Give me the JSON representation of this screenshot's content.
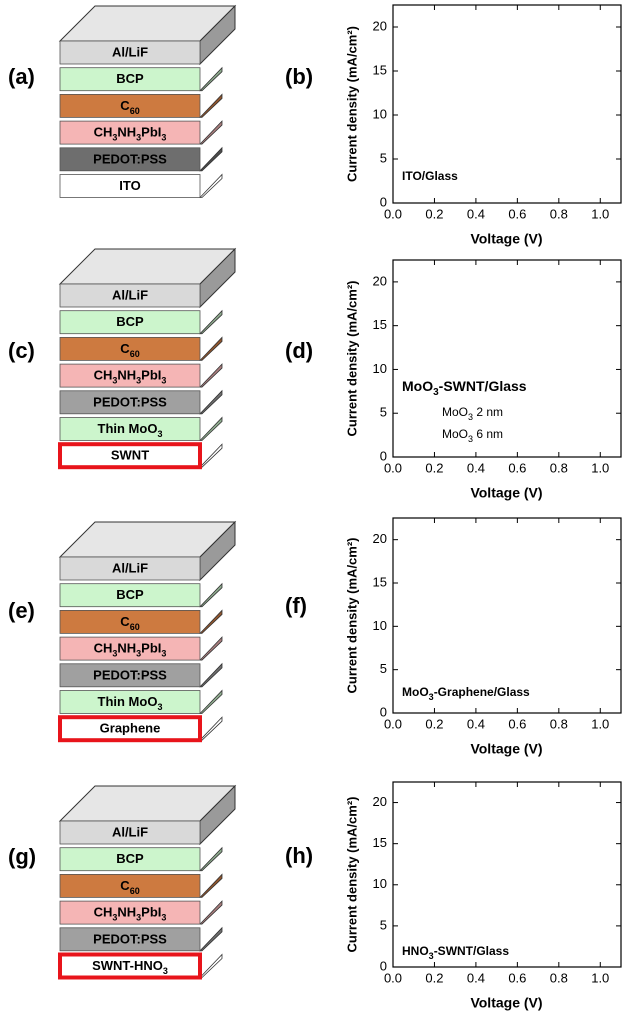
{
  "panels": [
    {
      "label": "(a)",
      "layers": [
        {
          "text": [
            "Al/LiF"
          ],
          "color": "#d9d9d9"
        },
        {
          "text": [
            "BCP"
          ],
          "color": "#ccf5cc"
        },
        {
          "text": [
            "C",
            "60"
          ],
          "color": "#cd7a40"
        },
        {
          "text": [
            "CH",
            "3",
            "NH",
            "3",
            "PbI",
            "3"
          ],
          "color": "#f5b5b5"
        },
        {
          "text": [
            "PEDOT:PSS"
          ],
          "color": "#6e6e6e"
        },
        {
          "text": [
            "ITO"
          ],
          "color": "#ffffff"
        }
      ]
    },
    {
      "label": "(c)",
      "layers": [
        {
          "text": [
            "Al/LiF"
          ],
          "color": "#d9d9d9"
        },
        {
          "text": [
            "BCP"
          ],
          "color": "#ccf5cc"
        },
        {
          "text": [
            "C",
            "60"
          ],
          "color": "#cd7a40"
        },
        {
          "text": [
            "CH",
            "3",
            "NH",
            "3",
            "PbI",
            "3"
          ],
          "color": "#f5b5b5"
        },
        {
          "text": [
            "PEDOT:PSS"
          ],
          "color": "#a0a0a0"
        },
        {
          "text": [
            "Thin MoO",
            "3"
          ],
          "color": "#ccf5cc"
        },
        {
          "text": [
            "SWNT"
          ],
          "color": "#ffffff",
          "highlight": true
        }
      ]
    },
    {
      "label": "(e)",
      "layers": [
        {
          "text": [
            "Al/LiF"
          ],
          "color": "#d9d9d9"
        },
        {
          "text": [
            "BCP"
          ],
          "color": "#ccf5cc"
        },
        {
          "text": [
            "C",
            "60"
          ],
          "color": "#cd7a40"
        },
        {
          "text": [
            "CH",
            "3",
            "NH",
            "3",
            "PbI",
            "3"
          ],
          "color": "#f5b5b5"
        },
        {
          "text": [
            "PEDOT:PSS"
          ],
          "color": "#a0a0a0"
        },
        {
          "text": [
            "Thin MoO",
            "3"
          ],
          "color": "#ccf5cc"
        },
        {
          "text": [
            "Graphene"
          ],
          "color": "#ffffff",
          "highlight": true
        }
      ]
    },
    {
      "label": "(g)",
      "layers": [
        {
          "text": [
            "Al/LiF"
          ],
          "color": "#d9d9d9"
        },
        {
          "text": [
            "BCP"
          ],
          "color": "#ccf5cc"
        },
        {
          "text": [
            "C",
            "60"
          ],
          "color": "#cd7a40"
        },
        {
          "text": [
            "CH",
            "3",
            "NH",
            "3",
            "PbI",
            "3"
          ],
          "color": "#f5b5b5"
        },
        {
          "text": [
            "PEDOT:PSS"
          ],
          "color": "#a0a0a0"
        },
        {
          "text": [
            "SWNT-HNO",
            "3"
          ],
          "color": "#ffffff",
          "highlight": true
        }
      ]
    }
  ],
  "chart_data": [
    {
      "type": "line",
      "label": "(b)",
      "annotation": [
        "ITO/Glass"
      ],
      "xlabel": "Voltage (V)",
      "ylabel": "Current density (mA/cm²)",
      "xlim": [
        0,
        1.1
      ],
      "ylim": [
        0,
        22.5
      ],
      "xticks": [
        {
          "value": 0,
          "label": "0.0"
        },
        {
          "value": 0.2,
          "label": "0.2"
        },
        {
          "value": 0.4,
          "label": "0.4"
        },
        {
          "value": 0.6,
          "label": "0.6"
        },
        {
          "value": 0.8,
          "label": "0.8"
        },
        {
          "value": 1,
          "label": "1.0"
        }
      ],
      "yticks": [
        0,
        5,
        10,
        15,
        20
      ]
    },
    {
      "type": "line",
      "label": "(d)",
      "annotation": [
        "MoO",
        "3",
        "-SWNT/Glass"
      ],
      "legend": [
        [
          "MoO",
          "3",
          " 2 nm"
        ],
        [
          "MoO",
          "3",
          " 6 nm"
        ]
      ],
      "xlabel": "Voltage (V)",
      "ylabel": "Current density (mA/cm²)",
      "xlim": [
        0,
        1.1
      ],
      "ylim": [
        0,
        22.5
      ],
      "xticks": [
        {
          "value": 0,
          "label": "0.0"
        },
        {
          "value": 0.2,
          "label": "0.2"
        },
        {
          "value": 0.4,
          "label": "0.4"
        },
        {
          "value": 0.6,
          "label": "0.6"
        },
        {
          "value": 0.8,
          "label": "0.8"
        },
        {
          "value": 1,
          "label": "1.0"
        }
      ],
      "yticks": [
        0,
        5,
        10,
        15,
        20
      ]
    },
    {
      "type": "line",
      "label": "(f)",
      "annotation": [
        "MoO",
        "3",
        "-Graphene/Glass"
      ],
      "xlabel": "Voltage (V)",
      "ylabel": "Current density (mA/cm²)",
      "xlim": [
        0,
        1.1
      ],
      "ylim": [
        0,
        22.5
      ],
      "xticks": [
        {
          "value": 0,
          "label": "0.0"
        },
        {
          "value": 0.2,
          "label": "0.2"
        },
        {
          "value": 0.4,
          "label": "0.4"
        },
        {
          "value": 0.6,
          "label": "0.6"
        },
        {
          "value": 0.8,
          "label": "0.8"
        },
        {
          "value": 1,
          "label": "1.0"
        }
      ],
      "yticks": [
        0,
        5,
        10,
        15,
        20
      ]
    },
    {
      "type": "line",
      "label": "(h)",
      "annotation": [
        "HNO",
        "3",
        "-SWNT/Glass"
      ],
      "xlabel": "Voltage (V)",
      "ylabel": "Current density (mA/cm²)",
      "xlim": [
        0,
        1.1
      ],
      "ylim": [
        0,
        22.5
      ],
      "xticks": [
        {
          "value": 0,
          "label": "0.0"
        },
        {
          "value": 0.2,
          "label": "0.2"
        },
        {
          "value": 0.4,
          "label": "0.4"
        },
        {
          "value": 0.6,
          "label": "0.6"
        },
        {
          "value": 0.8,
          "label": "0.8"
        },
        {
          "value": 1,
          "label": "1.0"
        }
      ],
      "yticks": [
        0,
        5,
        10,
        15,
        20
      ]
    }
  ]
}
